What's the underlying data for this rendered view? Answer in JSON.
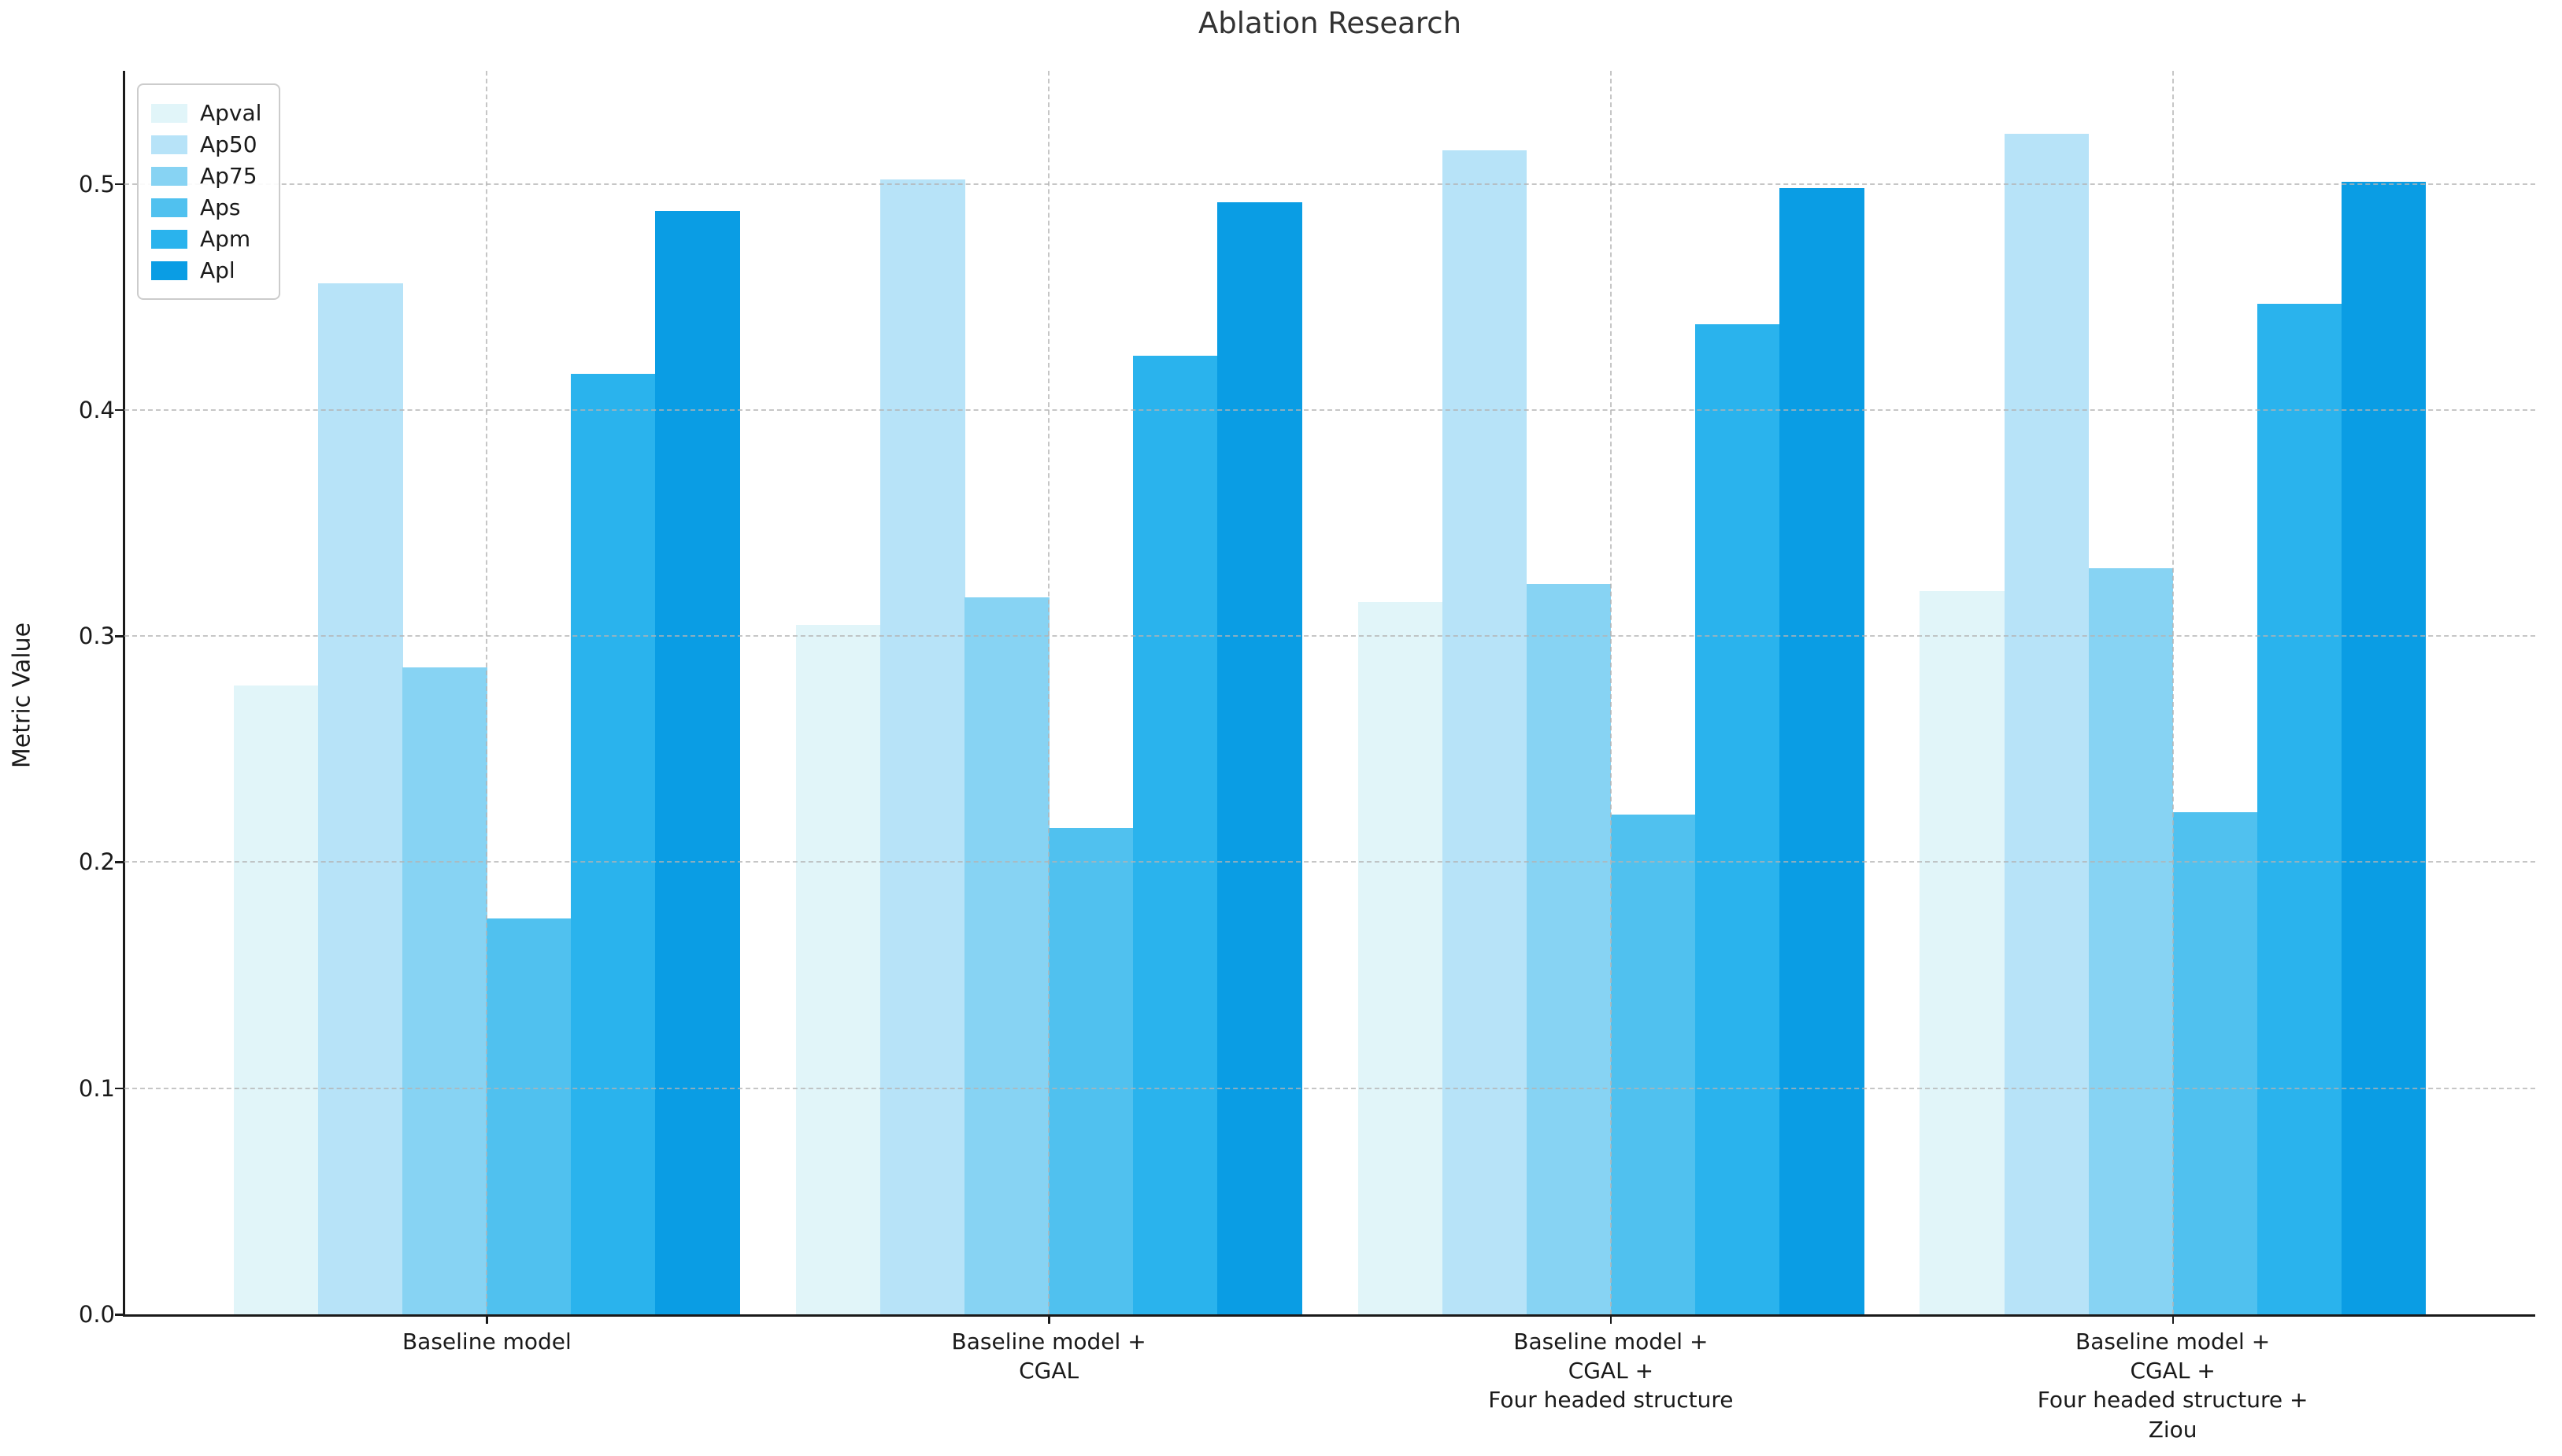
{
  "chart_data": {
    "type": "bar",
    "title": "Ablation Research",
    "ylabel": "Metric Value",
    "xlabel": "",
    "categories": [
      "Baseline model",
      "Baseline model +\nCGAL",
      "Baseline model +\nCGAL +\nFour headed structure",
      "Baseline model +\nCGAL +\nFour headed structure +\nZiou"
    ],
    "series": [
      {
        "name": "Apval",
        "color": "#e1f5f9",
        "values": [
          0.278,
          0.305,
          0.315,
          0.32
        ]
      },
      {
        "name": "Ap50",
        "color": "#b7e3f8",
        "values": [
          0.456,
          0.502,
          0.515,
          0.522
        ]
      },
      {
        "name": "Ap75",
        "color": "#87d3f3",
        "values": [
          0.286,
          0.317,
          0.323,
          0.33
        ]
      },
      {
        "name": "Aps",
        "color": "#50c1ef",
        "values": [
          0.175,
          0.215,
          0.221,
          0.222
        ]
      },
      {
        "name": "Apm",
        "color": "#2ab3ed",
        "values": [
          0.416,
          0.424,
          0.438,
          0.447
        ]
      },
      {
        "name": "Apl",
        "color": "#0a9de4",
        "values": [
          0.488,
          0.492,
          0.498,
          0.501
        ]
      }
    ],
    "ylim": [
      0,
      0.55
    ],
    "yticks": [
      0.0,
      0.1,
      0.2,
      0.3,
      0.4,
      0.5
    ],
    "ytick_labels": [
      "0.0",
      "0.1",
      "0.2",
      "0.3",
      "0.4",
      "0.5"
    ],
    "grid": {
      "horizontal": "dashed",
      "vertical": "dashed",
      "color": "#b4b4b4"
    },
    "legend": {
      "position": "upper-left",
      "entries": [
        "Apval",
        "Ap50",
        "Ap75",
        "Aps",
        "Apm",
        "Apl"
      ]
    },
    "axis_color": "#1a1a1a",
    "title_color": "#333333"
  }
}
